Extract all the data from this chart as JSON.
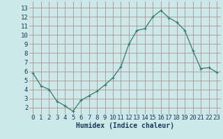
{
  "x": [
    0,
    1,
    2,
    3,
    4,
    5,
    6,
    7,
    8,
    9,
    10,
    11,
    12,
    13,
    14,
    15,
    16,
    17,
    18,
    19,
    20,
    21,
    22,
    23
  ],
  "y": [
    5.8,
    4.4,
    4.0,
    2.7,
    2.2,
    1.6,
    2.8,
    3.3,
    3.8,
    4.5,
    5.3,
    6.5,
    9.0,
    10.5,
    10.7,
    12.0,
    12.7,
    11.9,
    11.4,
    10.5,
    8.3,
    6.3,
    6.4,
    5.9
  ],
  "title": "",
  "xlabel": "Humidex (Indice chaleur)",
  "ylabel": "",
  "xlim": [
    -0.5,
    23.5
  ],
  "ylim": [
    1.3,
    13.7
  ],
  "yticks": [
    2,
    3,
    4,
    5,
    6,
    7,
    8,
    9,
    10,
    11,
    12,
    13
  ],
  "xticks": [
    0,
    1,
    2,
    3,
    4,
    5,
    6,
    7,
    8,
    9,
    10,
    11,
    12,
    13,
    14,
    15,
    16,
    17,
    18,
    19,
    20,
    21,
    22,
    23
  ],
  "line_color": "#2e7d6e",
  "marker_color": "#2e7d6e",
  "bg_color": "#cce8e8",
  "grid_color": "#b08080",
  "tick_label_color": "#1a3a5c",
  "xlabel_color": "#1a3a5c",
  "xlabel_fontsize": 7,
  "tick_fontsize": 6.5
}
